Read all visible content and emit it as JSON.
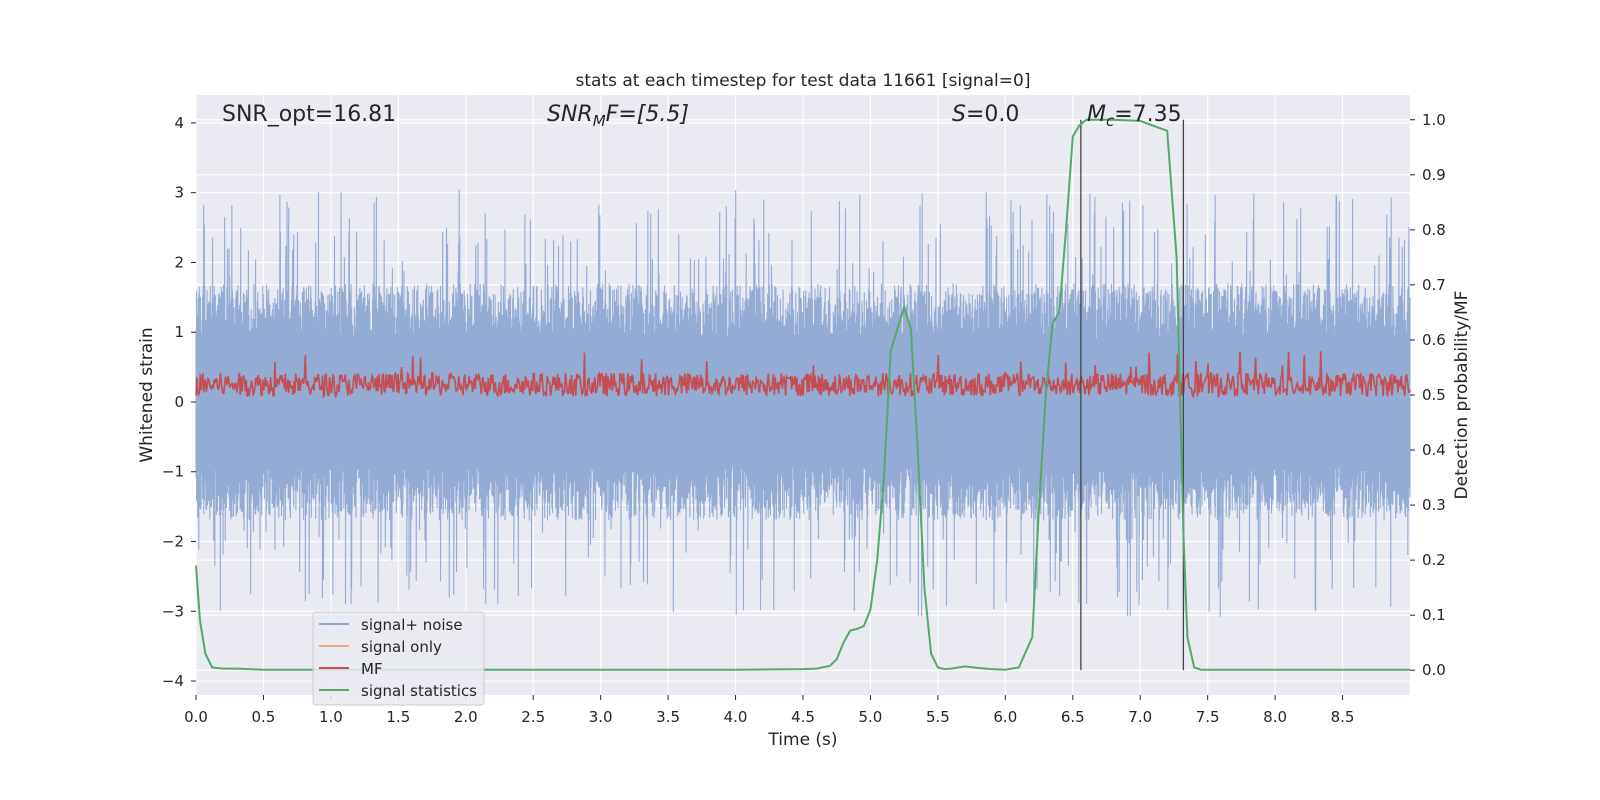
{
  "chart_data": {
    "type": "line",
    "title": "stats at each timestep for test data 11661 [signal=0]",
    "xlabel": "Time (s)",
    "ylabel_left": "Whitened strain",
    "ylabel_right": "Detection probability/MF",
    "xlim": [
      0.0,
      9.0
    ],
    "ylim_left": [
      -4.2,
      4.4
    ],
    "ylim_right": [
      -0.045,
      1.045
    ],
    "x_ticks": [
      "0.0",
      "0.5",
      "1.0",
      "1.5",
      "2.0",
      "2.5",
      "3.0",
      "3.5",
      "4.0",
      "4.5",
      "5.0",
      "5.5",
      "6.0",
      "6.5",
      "7.0",
      "7.5",
      "8.0",
      "8.5"
    ],
    "y_ticks_left": [
      "−4",
      "−3",
      "−2",
      "−1",
      "0",
      "1",
      "2",
      "3",
      "4"
    ],
    "y_ticks_right": [
      "0.0",
      "0.1",
      "0.2",
      "0.3",
      "0.4",
      "0.5",
      "0.6",
      "0.7",
      "0.8",
      "0.9",
      "1.0"
    ],
    "grid": true,
    "legend_position": "lower-left",
    "annotations": {
      "snr_opt": "SNR_opt=16.81",
      "snr_mf_italic": "SNR",
      "snr_mf_sub": "M",
      "snr_mf_tail": "F=[5.5]",
      "s_italic": "S",
      "s_value": "=0.0",
      "mc_italic": "M",
      "mc_sub": "c",
      "mc_value": "=7.35"
    },
    "vertical_markers": [
      6.56,
      7.32
    ],
    "series": [
      {
        "name": "signal+ noise",
        "color": "#8fa8d2",
        "description_level": "noise band approx ±1.5, spikes to about ±3.5 (axis: Whitened strain)"
      },
      {
        "name": "signal only",
        "color": "#e9a98b",
        "values": []
      },
      {
        "name": "MF",
        "color": "#c44e52",
        "level": "0.1 to 0.45 (axis: Whitened strain)"
      },
      {
        "name": "signal statistics",
        "color": "#55a868",
        "x": [
          0.0,
          0.03,
          0.07,
          0.12,
          0.2,
          0.3,
          0.5,
          0.8,
          1.0,
          1.5,
          2.0,
          3.0,
          4.0,
          4.5,
          4.6,
          4.7,
          4.75,
          4.8,
          4.85,
          4.9,
          4.95,
          5.0,
          5.05,
          5.1,
          5.15,
          5.2,
          5.25,
          5.3,
          5.35,
          5.4,
          5.45,
          5.5,
          5.55,
          5.6,
          5.7,
          5.8,
          5.9,
          6.0,
          6.1,
          6.2,
          6.25,
          6.3,
          6.35,
          6.4,
          6.45,
          6.5,
          6.55,
          6.6,
          6.65,
          6.7,
          6.8,
          7.0,
          7.2,
          7.27,
          7.32,
          7.35,
          7.4,
          7.45,
          7.5,
          7.55,
          7.6,
          7.8,
          8.0,
          8.5,
          9.0
        ],
        "values": [
          0.19,
          0.09,
          0.03,
          0.005,
          0.003,
          0.003,
          0.001,
          0.001,
          0.001,
          0.001,
          0.001,
          0.001,
          0.001,
          0.002,
          0.003,
          0.008,
          0.02,
          0.05,
          0.072,
          0.075,
          0.08,
          0.11,
          0.2,
          0.35,
          0.58,
          0.62,
          0.66,
          0.62,
          0.4,
          0.15,
          0.03,
          0.005,
          0.002,
          0.003,
          0.007,
          0.004,
          0.002,
          0.001,
          0.005,
          0.06,
          0.3,
          0.5,
          0.63,
          0.65,
          0.8,
          0.97,
          0.99,
          1.0,
          1.0,
          1.0,
          1.0,
          0.998,
          0.98,
          0.75,
          0.25,
          0.06,
          0.005,
          0.001,
          0.001,
          0.001,
          0.001,
          0.001,
          0.001,
          0.001,
          0.001
        ]
      }
    ]
  }
}
